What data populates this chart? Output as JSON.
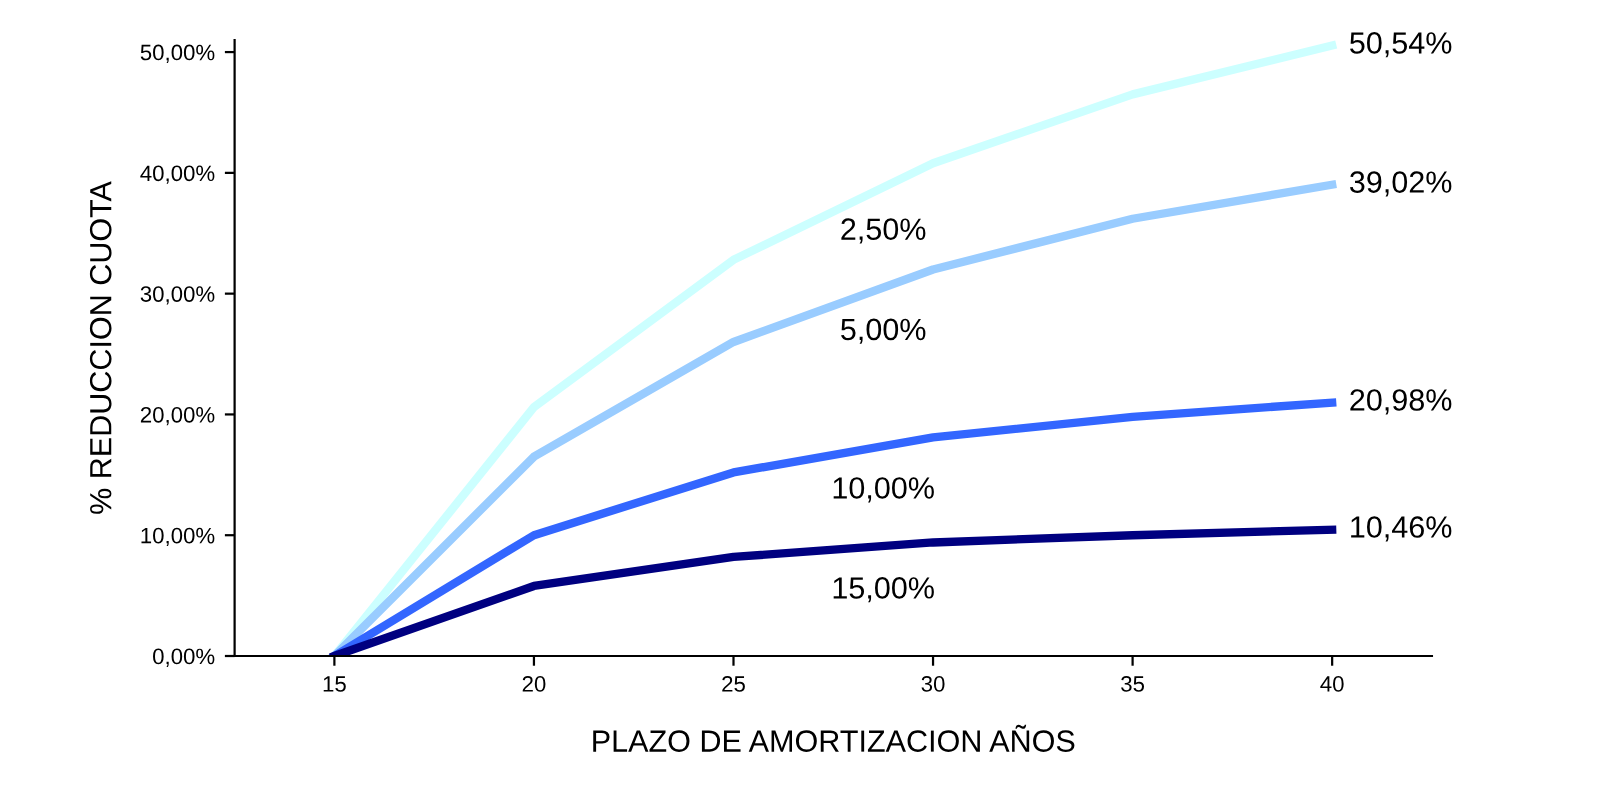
{
  "chart_data": {
    "type": "line",
    "xlabel": "PLAZO DE AMORTIZACION AÑOS",
    "ylabel": "% REDUCCION CUOTA",
    "x": [
      15,
      20,
      25,
      30,
      35,
      40
    ],
    "xlim": [
      12.5,
      42.5
    ],
    "xticks": [
      15,
      20,
      25,
      30,
      35,
      40
    ],
    "ylim": [
      0,
      51
    ],
    "yticks": [
      {
        "value": 0,
        "label": "0,00%"
      },
      {
        "value": 10,
        "label": "10,00%"
      },
      {
        "value": 20,
        "label": "20,00%"
      },
      {
        "value": 30,
        "label": "30,00%"
      },
      {
        "value": 40,
        "label": "40,00%"
      },
      {
        "value": 50,
        "label": "50,00%"
      }
    ],
    "grid": false,
    "marker": "none",
    "line_style": "solid",
    "series": [
      {
        "name": "2,50%",
        "color": "#ccffff",
        "values": [
          0,
          20.6,
          32.8,
          40.8,
          46.5,
          50.54
        ],
        "value_labels": [
          null,
          null,
          null,
          null,
          null,
          "50,54%"
        ]
      },
      {
        "name": "5,00%",
        "color": "#99ccff",
        "values": [
          0,
          16.5,
          26.0,
          32.0,
          36.2,
          39.02
        ],
        "value_labels": [
          null,
          null,
          null,
          null,
          null,
          "39,02%"
        ]
      },
      {
        "name": "10,00%",
        "color": "#3366ff",
        "values": [
          0,
          10.0,
          15.2,
          18.1,
          19.8,
          20.98
        ],
        "value_labels": [
          null,
          null,
          null,
          null,
          null,
          "20,98%"
        ]
      },
      {
        "name": "15,00%",
        "color": "#000080",
        "values": [
          0,
          5.8,
          8.2,
          9.4,
          10.0,
          10.46
        ],
        "value_labels": [
          null,
          null,
          null,
          null,
          null,
          "10,46%"
        ]
      }
    ]
  }
}
